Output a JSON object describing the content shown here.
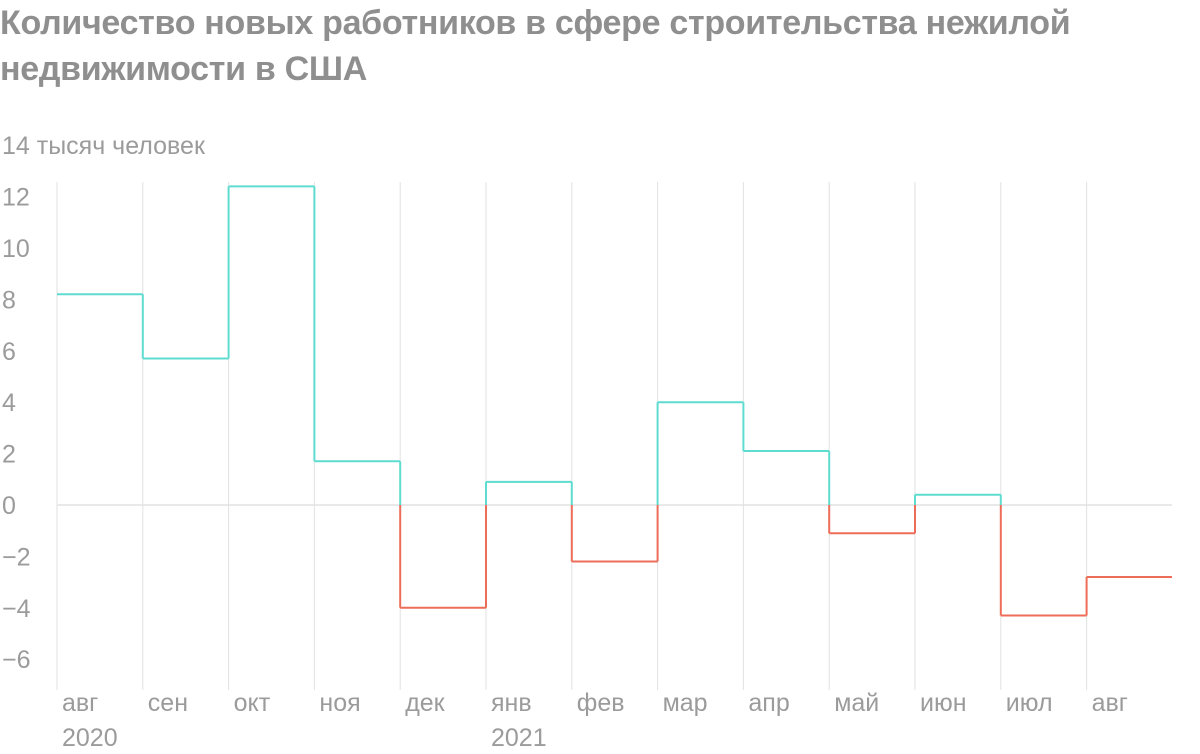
{
  "title": "Количество новых работников в сфере строительства нежилой недвижимости в США",
  "colors": {
    "positive": "#5fdcd0",
    "negative": "#ee6d58",
    "grid": "#e2e2e2",
    "text": "#9b9b9b"
  },
  "chart_data": {
    "type": "line",
    "step": true,
    "ylabel": "тысяч человек",
    "ylim": [
      -7.2,
      14
    ],
    "yticks": [
      14,
      12,
      10,
      8,
      6,
      4,
      2,
      0,
      -2,
      -4,
      -6
    ],
    "y_top_tick_label": "14 тысяч человек",
    "categories": [
      "авг",
      "сен",
      "окт",
      "ноя",
      "дек",
      "янв",
      "фев",
      "мар",
      "апр",
      "май",
      "июн",
      "июл",
      "авг"
    ],
    "year_labels": [
      {
        "index": 0,
        "label": "2020"
      },
      {
        "index": 5,
        "label": "2021"
      }
    ],
    "values": [
      8.2,
      5.7,
      12.4,
      1.7,
      -4.0,
      0.9,
      -2.2,
      4.0,
      2.1,
      -1.1,
      0.4,
      -4.3,
      -2.8
    ]
  }
}
